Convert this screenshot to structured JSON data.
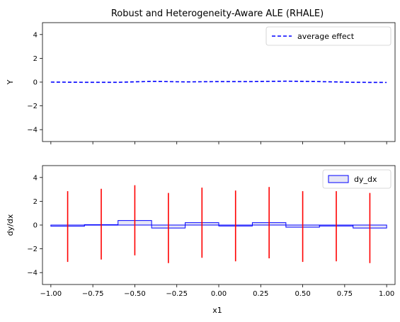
{
  "chart_data": [
    {
      "type": "line",
      "title": "Robust and Heterogeneity-Aware ALE (RHALE)",
      "xlabel": "",
      "ylabel": "Y",
      "xlim": [
        -1.05,
        1.05
      ],
      "ylim": [
        -5,
        5
      ],
      "yticks": [
        -4,
        -2,
        0,
        2,
        4
      ],
      "xticks": [
        -1.0,
        -0.75,
        -0.5,
        -0.25,
        0.0,
        0.25,
        0.5,
        0.75,
        1.0
      ],
      "xtick_labels_visible": false,
      "legend": {
        "position": "top-right",
        "entries": [
          "average effect"
        ]
      },
      "series": [
        {
          "name": "average effect",
          "color": "#0000ff",
          "style": "dashed",
          "x": [
            -1.0,
            -0.8,
            -0.6,
            -0.4,
            -0.2,
            0.0,
            0.2,
            0.4,
            0.6,
            0.8,
            1.0
          ],
          "y": [
            0.0,
            -0.02,
            -0.02,
            0.06,
            0.02,
            0.04,
            0.04,
            0.08,
            0.04,
            -0.02,
            -0.03
          ]
        }
      ]
    },
    {
      "type": "bar",
      "title": "",
      "xlabel": "x1",
      "ylabel": "dy/dx",
      "xlim": [
        -1.05,
        1.05
      ],
      "ylim": [
        -5,
        5
      ],
      "yticks": [
        -4,
        -2,
        0,
        2,
        4
      ],
      "xticks": [
        -1.0,
        -0.75,
        -0.5,
        -0.25,
        0.0,
        0.25,
        0.5,
        0.75,
        1.0
      ],
      "xtick_labels": [
        "−1.00",
        "−0.75",
        "−0.50",
        "−0.25",
        "0.00",
        "0.25",
        "0.50",
        "0.75",
        "1.00"
      ],
      "legend": {
        "position": "top-right",
        "entries": [
          "dy_dx"
        ]
      },
      "bins": [
        {
          "x0": -1.0,
          "x1": -0.8,
          "value": -0.1
        },
        {
          "x0": -0.8,
          "x1": -0.6,
          "value": 0.03
        },
        {
          "x0": -0.6,
          "x1": -0.4,
          "value": 0.38
        },
        {
          "x0": -0.4,
          "x1": -0.2,
          "value": -0.25
        },
        {
          "x0": -0.2,
          "x1": 0.0,
          "value": 0.2
        },
        {
          "x0": 0.0,
          "x1": 0.2,
          "value": -0.08
        },
        {
          "x0": 0.2,
          "x1": 0.4,
          "value": 0.2
        },
        {
          "x0": 0.4,
          "x1": 0.6,
          "value": -0.18
        },
        {
          "x0": 0.6,
          "x1": 0.8,
          "value": -0.08
        },
        {
          "x0": 0.8,
          "x1": 1.0,
          "value": -0.25
        }
      ],
      "error_bars": [
        {
          "x": -0.9,
          "low": -3.1,
          "high": 2.85
        },
        {
          "x": -0.7,
          "low": -2.9,
          "high": 3.05
        },
        {
          "x": -0.5,
          "low": -2.55,
          "high": 3.35
        },
        {
          "x": -0.3,
          "low": -3.2,
          "high": 2.7
        },
        {
          "x": -0.1,
          "low": -2.75,
          "high": 3.15
        },
        {
          "x": 0.1,
          "low": -3.05,
          "high": 2.9
        },
        {
          "x": 0.3,
          "low": -2.8,
          "high": 3.2
        },
        {
          "x": 0.5,
          "low": -3.1,
          "high": 2.85
        },
        {
          "x": 0.7,
          "low": -3.05,
          "high": 2.85
        },
        {
          "x": 0.9,
          "low": -3.2,
          "high": 2.7
        }
      ],
      "bar_color": "#0000ff",
      "bar_fill": "#e6e6f5",
      "error_color": "#ff0000"
    }
  ]
}
